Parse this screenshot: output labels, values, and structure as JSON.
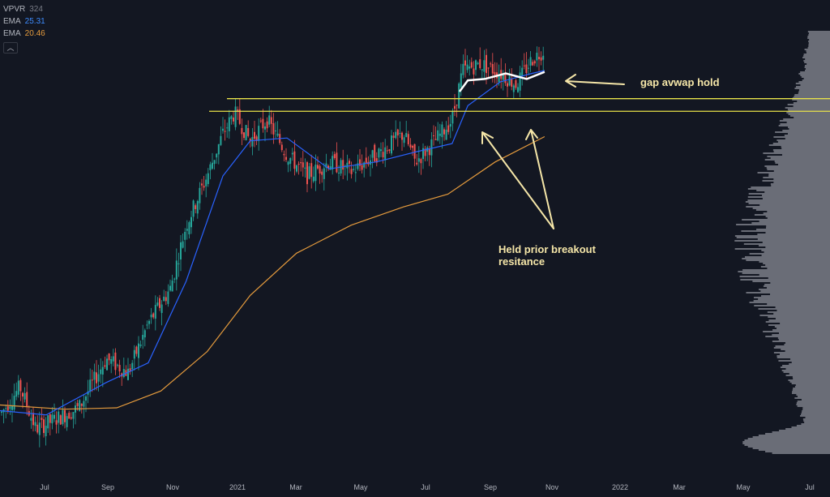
{
  "legend": {
    "vpvr_label": "VPVR",
    "vpvr_value": "324",
    "ema1_label": "EMA",
    "ema1_value": "25.31",
    "ema2_label": "EMA",
    "ema2_value": "20.46",
    "collapse_icon": "chevron-up-icon"
  },
  "annotations": {
    "gap": "gap avwap hold",
    "held_line1": "Held prior breakout",
    "held_line2": "resitance"
  },
  "colors": {
    "background": "#131722",
    "up_candle": "#26a69a",
    "down_candle": "#ef5350",
    "ema_fast": "#2962ff",
    "ema_slow": "#e59b3d",
    "horizontal_lines": "#e8e24a",
    "annotation": "#f5e6a8",
    "volume_profile": "#b2b5be"
  },
  "chart_data": {
    "type": "candlestick",
    "x_ticks": [
      "Jul",
      "Sep",
      "Nov",
      "2021",
      "Mar",
      "May",
      "Jul",
      "Sep",
      "Nov",
      "2022",
      "Mar",
      "May",
      "Jul"
    ],
    "price_path": [
      {
        "x": "2020-06-01",
        "y": 8.5
      },
      {
        "x": "2020-06-20",
        "y": 10.5
      },
      {
        "x": "2020-07-05",
        "y": 7.5
      },
      {
        "x": "2020-08-15",
        "y": 9.0
      },
      {
        "x": "2020-09-10",
        "y": 12.5
      },
      {
        "x": "2020-10-01",
        "y": 11.5
      },
      {
        "x": "2020-10-20",
        "y": 15.0
      },
      {
        "x": "2020-11-10",
        "y": 17.5
      },
      {
        "x": "2020-11-25",
        "y": 22.0
      },
      {
        "x": "2020-12-15",
        "y": 25.5
      },
      {
        "x": "2020-12-30",
        "y": 28.5
      },
      {
        "x": "2021-01-10",
        "y": 30.0
      },
      {
        "x": "2021-01-25",
        "y": 28.0
      },
      {
        "x": "2021-02-10",
        "y": 29.5
      },
      {
        "x": "2021-03-01",
        "y": 27.0
      },
      {
        "x": "2021-03-20",
        "y": 25.5
      },
      {
        "x": "2021-04-10",
        "y": 26.5
      },
      {
        "x": "2021-05-01",
        "y": 25.8
      },
      {
        "x": "2021-05-25",
        "y": 27.0
      },
      {
        "x": "2021-06-20",
        "y": 28.5
      },
      {
        "x": "2021-07-01",
        "y": 26.5
      },
      {
        "x": "2021-07-20",
        "y": 28.0
      },
      {
        "x": "2021-08-05",
        "y": 29.5
      },
      {
        "x": "2021-08-15",
        "y": 33.0
      },
      {
        "x": "2021-09-01",
        "y": 33.5
      },
      {
        "x": "2021-09-20",
        "y": 32.8
      },
      {
        "x": "2021-10-05",
        "y": 32.0
      },
      {
        "x": "2021-10-20",
        "y": 33.8
      },
      {
        "x": "2021-11-01",
        "y": 34.5
      }
    ],
    "ema_fast": [
      {
        "x": "2020-06-01",
        "y": 8.8
      },
      {
        "x": "2020-07-15",
        "y": 8.5
      },
      {
        "x": "2020-09-10",
        "y": 10.8
      },
      {
        "x": "2020-10-20",
        "y": 12.2
      },
      {
        "x": "2020-11-25",
        "y": 18.0
      },
      {
        "x": "2020-12-30",
        "y": 25.5
      },
      {
        "x": "2021-01-25",
        "y": 28.0
      },
      {
        "x": "2021-03-01",
        "y": 28.2
      },
      {
        "x": "2021-04-10",
        "y": 26.0
      },
      {
        "x": "2021-05-25",
        "y": 26.5
      },
      {
        "x": "2021-07-01",
        "y": 27.2
      },
      {
        "x": "2021-08-05",
        "y": 27.8
      },
      {
        "x": "2021-08-20",
        "y": 30.5
      },
      {
        "x": "2021-09-20",
        "y": 32.2
      },
      {
        "x": "2021-10-20",
        "y": 32.8
      },
      {
        "x": "2021-11-01",
        "y": 33.0
      }
    ],
    "ema_slow": [
      {
        "x": "2020-06-01",
        "y": 9.2
      },
      {
        "x": "2020-08-01",
        "y": 8.9
      },
      {
        "x": "2020-09-20",
        "y": 9.0
      },
      {
        "x": "2020-11-01",
        "y": 10.2
      },
      {
        "x": "2020-12-15",
        "y": 13.0
      },
      {
        "x": "2021-01-25",
        "y": 17.0
      },
      {
        "x": "2021-03-10",
        "y": 20.0
      },
      {
        "x": "2021-05-01",
        "y": 22.0
      },
      {
        "x": "2021-06-20",
        "y": 23.3
      },
      {
        "x": "2021-08-01",
        "y": 24.2
      },
      {
        "x": "2021-09-15",
        "y": 26.5
      },
      {
        "x": "2021-11-01",
        "y": 28.3
      }
    ],
    "avwap": [
      {
        "x": "2021-08-12",
        "y": 31.5
      },
      {
        "x": "2021-08-20",
        "y": 32.3
      },
      {
        "x": "2021-09-05",
        "y": 32.4
      },
      {
        "x": "2021-09-25",
        "y": 32.8
      },
      {
        "x": "2021-10-15",
        "y": 32.4
      },
      {
        "x": "2021-11-01",
        "y": 32.9
      }
    ],
    "horizontal_levels": [
      31.0,
      30.1
    ],
    "volume_profile": "right-side histogram",
    "grid": false
  }
}
